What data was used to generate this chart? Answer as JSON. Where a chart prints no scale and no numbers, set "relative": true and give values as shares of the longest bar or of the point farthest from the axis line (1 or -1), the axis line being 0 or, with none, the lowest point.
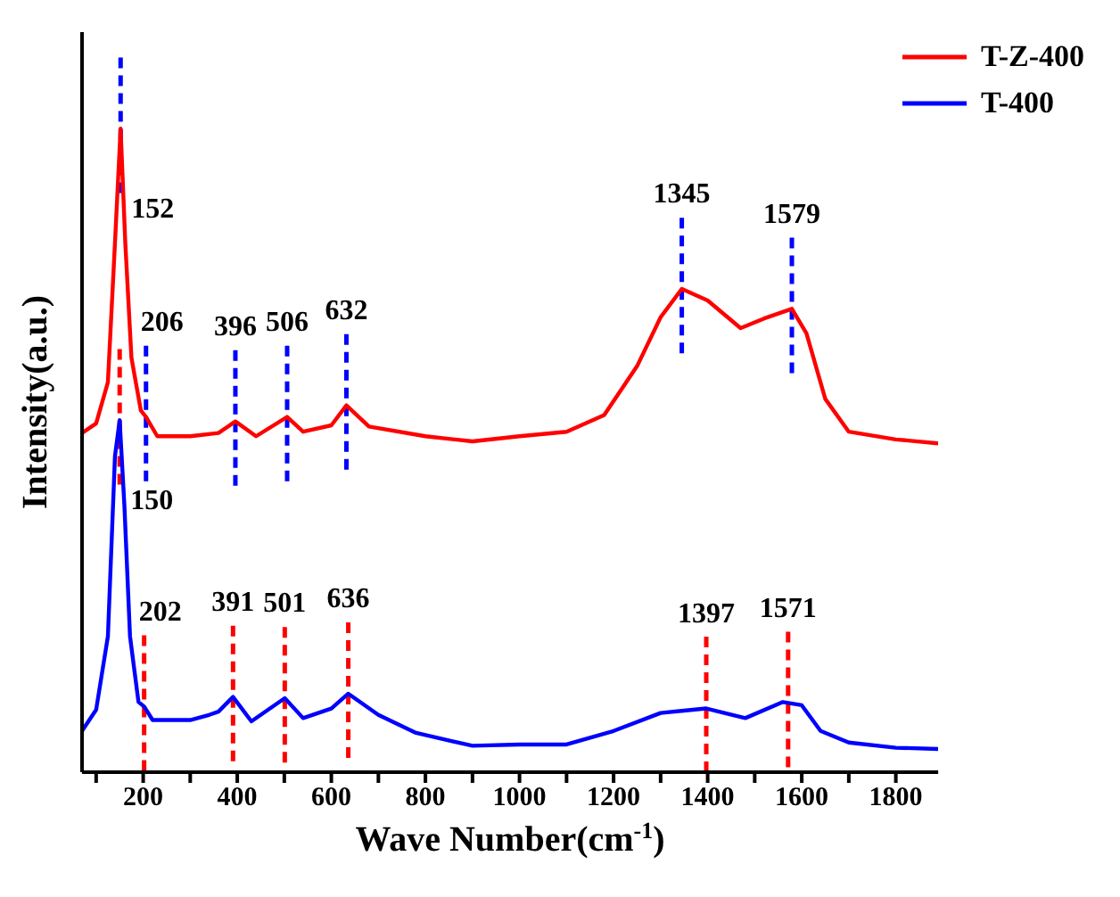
{
  "chart_data": {
    "type": "line",
    "relative": true,
    "xlabel": "Wave Number(cm$^{-1}$)",
    "ylabel": "Intensity(a.u.)",
    "xlim": [
      70,
      1890
    ],
    "xticks": [
      {
        "value": 100,
        "label": null
      },
      200,
      {
        "value": 300,
        "label": null
      },
      400,
      {
        "value": 500,
        "label": null
      },
      600,
      {
        "value": 700,
        "label": null
      },
      800,
      {
        "value": 900,
        "label": null
      },
      1000,
      {
        "value": 1100,
        "label": null
      },
      1200,
      {
        "value": 1300,
        "label": null
      },
      1400,
      {
        "value": 1500,
        "label": null
      },
      1600,
      {
        "value": 1700,
        "label": null
      },
      1800
    ],
    "legend": "top right",
    "grid": false,
    "marker": "none",
    "line_style": "solid",
    "series": [
      {
        "name": "T-Z-400",
        "color": "#ff0000",
        "x": [
          70,
          100,
          125,
          140,
          152,
          162,
          175,
          195,
          206,
          230,
          300,
          360,
          396,
          440,
          506,
          540,
          600,
          632,
          680,
          800,
          900,
          1000,
          1100,
          1180,
          1250,
          1300,
          1345,
          1400,
          1470,
          1520,
          1579,
          1610,
          1650,
          1700,
          1800,
          1890
        ],
        "values": [
          0.527,
          0.542,
          0.606,
          0.822,
          1.0,
          0.822,
          0.644,
          0.562,
          0.552,
          0.522,
          0.522,
          0.527,
          0.545,
          0.522,
          0.552,
          0.529,
          0.539,
          0.57,
          0.537,
          0.522,
          0.514,
          0.522,
          0.529,
          0.555,
          0.631,
          0.707,
          0.751,
          0.733,
          0.69,
          0.705,
          0.72,
          0.682,
          0.58,
          0.529,
          0.517,
          0.511
        ]
      },
      {
        "name": "T-400",
        "color": "#0000ff",
        "x": [
          70,
          100,
          125,
          140,
          150,
          160,
          172,
          190,
          202,
          220,
          300,
          340,
          360,
          391,
          430,
          501,
          540,
          600,
          636,
          700,
          780,
          900,
          1000,
          1100,
          1200,
          1300,
          1397,
          1480,
          1560,
          1600,
          1640,
          1700,
          1800,
          1890
        ],
        "values": [
          0.064,
          0.097,
          0.211,
          0.491,
          0.547,
          0.415,
          0.211,
          0.109,
          0.102,
          0.081,
          0.081,
          0.089,
          0.094,
          0.117,
          0.079,
          0.115,
          0.084,
          0.099,
          0.122,
          0.089,
          0.061,
          0.041,
          0.043,
          0.043,
          0.064,
          0.092,
          0.099,
          0.084,
          0.109,
          0.104,
          0.064,
          0.046,
          0.038,
          0.036
        ]
      }
    ],
    "ref_lines": [
      {
        "axis": "x",
        "value": 152,
        "label": "152",
        "color": "#0000ff",
        "line_style": "dashed"
      },
      {
        "axis": "x",
        "value": 206,
        "label": "206",
        "color": "#0000ff",
        "line_style": "dashed"
      },
      {
        "axis": "x",
        "value": 396,
        "label": "396",
        "color": "#0000ff",
        "line_style": "dashed"
      },
      {
        "axis": "x",
        "value": 506,
        "label": "506",
        "color": "#0000ff",
        "line_style": "dashed"
      },
      {
        "axis": "x",
        "value": 632,
        "label": "632",
        "color": "#0000ff",
        "line_style": "dashed"
      },
      {
        "axis": "x",
        "value": 1345,
        "label": "1345",
        "color": "#0000ff",
        "line_style": "dashed"
      },
      {
        "axis": "x",
        "value": 1579,
        "label": "1579",
        "color": "#0000ff",
        "line_style": "dashed"
      },
      {
        "axis": "x",
        "value": 150,
        "label": "150",
        "color": "#ff0000",
        "line_style": "dashed"
      },
      {
        "axis": "x",
        "value": 202,
        "label": "202",
        "color": "#ff0000",
        "line_style": "dashed"
      },
      {
        "axis": "x",
        "value": 391,
        "label": "391",
        "color": "#ff0000",
        "line_style": "dashed"
      },
      {
        "axis": "x",
        "value": 501,
        "label": "501",
        "color": "#ff0000",
        "line_style": "dashed"
      },
      {
        "axis": "x",
        "value": 636,
        "label": "636",
        "color": "#ff0000",
        "line_style": "dashed"
      },
      {
        "axis": "x",
        "value": 1397,
        "label": "1397",
        "color": "#ff0000",
        "line_style": "dashed"
      },
      {
        "axis": "x",
        "value": 1571,
        "label": "1571",
        "color": "#ff0000",
        "line_style": "dashed"
      }
    ]
  }
}
